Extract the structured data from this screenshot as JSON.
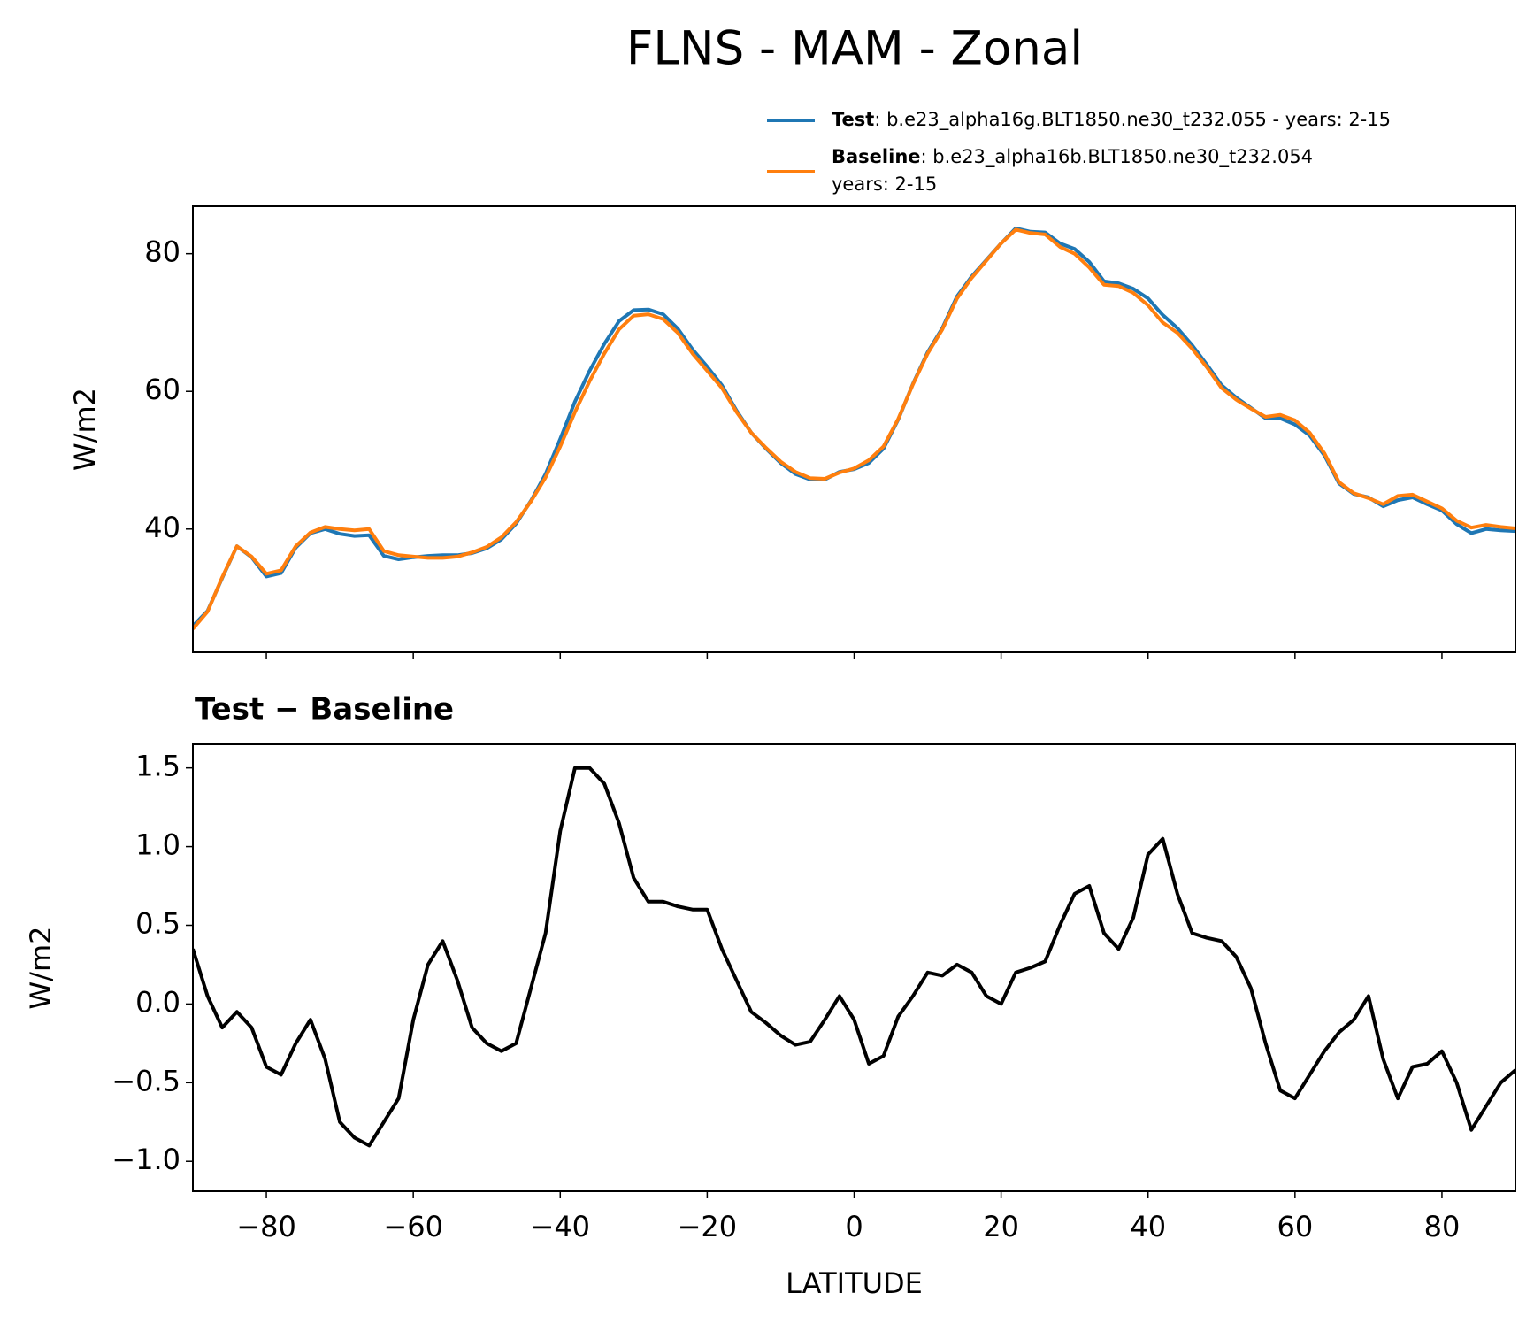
{
  "title": "FLNS - MAM - Zonal",
  "chart_data": [
    {
      "type": "line",
      "ylabel": "W/m2",
      "x": [
        -90,
        -88,
        -86,
        -84,
        -82,
        -80,
        -78,
        -76,
        -74,
        -72,
        -70,
        -68,
        -66,
        -64,
        -62,
        -60,
        -58,
        -56,
        -54,
        -52,
        -50,
        -48,
        -46,
        -44,
        -42,
        -40,
        -38,
        -36,
        -34,
        -32,
        -30,
        -28,
        -26,
        -24,
        -22,
        -20,
        -18,
        -16,
        -14,
        -12,
        -10,
        -8,
        -6,
        -4,
        -2,
        0,
        2,
        4,
        6,
        8,
        10,
        12,
        14,
        16,
        18,
        20,
        22,
        24,
        26,
        28,
        30,
        32,
        34,
        36,
        38,
        40,
        42,
        44,
        46,
        48,
        50,
        52,
        54,
        56,
        58,
        60,
        62,
        64,
        66,
        68,
        70,
        72,
        74,
        76,
        78,
        80,
        82,
        84,
        86,
        88,
        90
      ],
      "series": [
        {
          "name": "Test",
          "description": [
            ": b.e23_alpha16g.BLT1850.ne30_t232.055 - years: 2-15"
          ],
          "color": "#1f77b4",
          "values": [
            25.9,
            28.1,
            32.9,
            37.5,
            35.9,
            33.1,
            33.6,
            37.3,
            39.4,
            40.0,
            39.3,
            39.0,
            39.1,
            36.1,
            35.6,
            35.9,
            36.1,
            36.2,
            36.2,
            36.5,
            37.2,
            38.5,
            40.8,
            44.1,
            48.0,
            53.1,
            58.5,
            63.0,
            66.9,
            70.2,
            71.8,
            71.9,
            71.2,
            69.1,
            66.1,
            63.6,
            60.9,
            57.2,
            54.0,
            51.7,
            49.6,
            48.0,
            47.2,
            47.2,
            48.3,
            48.7,
            49.6,
            51.7,
            55.9,
            61.1,
            65.7,
            69.2,
            73.8,
            76.7,
            79.1,
            81.5,
            83.7,
            83.2,
            83.1,
            81.5,
            80.7,
            78.8,
            76.0,
            75.7,
            74.9,
            73.5,
            71.1,
            69.2,
            66.7,
            63.9,
            60.9,
            59.1,
            57.6,
            56.1,
            56.1,
            55.2,
            53.6,
            50.7,
            46.6,
            45.1,
            44.6,
            43.3,
            44.2,
            44.6,
            43.6,
            42.7,
            40.7,
            39.4,
            40.0,
            39.8,
            39.7
          ]
        },
        {
          "name": "Baseline",
          "description": [
            ": b.e23_alpha16b.BLT1850.ne30_t232.054",
            "years: 2-15"
          ],
          "color": "#ff7f0e",
          "values": [
            25.5,
            28,
            33,
            37.5,
            36,
            33.5,
            34,
            37.5,
            39.5,
            40.3,
            40,
            39.8,
            40,
            36.8,
            36.2,
            36,
            35.8,
            35.8,
            36,
            36.6,
            37.4,
            38.8,
            41,
            44,
            47.5,
            52,
            57,
            61.5,
            65.5,
            69,
            71,
            71.2,
            70.5,
            68.5,
            65.5,
            63,
            60.5,
            57,
            54,
            51.8,
            49.8,
            48.3,
            47.4,
            47.3,
            48.2,
            48.8,
            50,
            52,
            56,
            61,
            65.5,
            69,
            73.5,
            76.5,
            79,
            81.5,
            83.5,
            83,
            82.8,
            81,
            80,
            78,
            75.5,
            75.3,
            74.3,
            72.5,
            70,
            68.5,
            66.2,
            63.5,
            60.5,
            58.8,
            57.5,
            56.3,
            56.6,
            55.8,
            54,
            51,
            46.8,
            45.2,
            44.5,
            43.6,
            44.8,
            45,
            44,
            43,
            41.2,
            40.2,
            40.6,
            40.3,
            40.1
          ]
        }
      ],
      "xlim": [
        -90,
        90
      ],
      "ylim": [
        22.1,
        86.9
      ],
      "yticks": [
        40,
        60,
        80
      ]
    },
    {
      "type": "line",
      "title": "Test − Baseline",
      "ylabel": "W/m2",
      "xlabel": "LATITUDE",
      "x": [
        -90,
        -88,
        -86,
        -84,
        -82,
        -80,
        -78,
        -76,
        -74,
        -72,
        -70,
        -68,
        -66,
        -64,
        -62,
        -60,
        -58,
        -56,
        -54,
        -52,
        -50,
        -48,
        -46,
        -44,
        -42,
        -40,
        -38,
        -36,
        -34,
        -32,
        -30,
        -28,
        -26,
        -24,
        -22,
        -20,
        -18,
        -16,
        -14,
        -12,
        -10,
        -8,
        -6,
        -4,
        -2,
        0,
        2,
        4,
        6,
        8,
        10,
        12,
        14,
        16,
        18,
        20,
        22,
        24,
        26,
        28,
        30,
        32,
        34,
        36,
        38,
        40,
        42,
        44,
        46,
        48,
        50,
        52,
        54,
        56,
        58,
        60,
        62,
        64,
        66,
        68,
        70,
        72,
        74,
        76,
        78,
        80,
        82,
        84,
        86,
        88,
        90
      ],
      "series": [
        {
          "color": "#000000",
          "values": [
            0.35,
            0.05,
            -0.15,
            -0.05,
            -0.15,
            -0.4,
            -0.45,
            -0.25,
            -0.1,
            -0.35,
            -0.75,
            -0.85,
            -0.9,
            -0.75,
            -0.6,
            -0.1,
            0.25,
            0.4,
            0.15,
            -0.15,
            -0.25,
            -0.3,
            -0.25,
            0.1,
            0.45,
            1.1,
            1.5,
            1.5,
            1.4,
            1.15,
            0.8,
            0.65,
            0.65,
            0.62,
            0.6,
            0.6,
            0.35,
            0.15,
            -0.05,
            -0.12,
            -0.2,
            -0.26,
            -0.24,
            -0.1,
            0.05,
            -0.1,
            -0.38,
            -0.33,
            -0.08,
            0.05,
            0.2,
            0.18,
            0.25,
            0.2,
            0.05,
            0.0,
            0.2,
            0.23,
            0.27,
            0.5,
            0.7,
            0.75,
            0.45,
            0.35,
            0.55,
            0.95,
            1.05,
            0.7,
            0.45,
            0.42,
            0.4,
            0.3,
            0.1,
            -0.25,
            -0.55,
            -0.6,
            -0.45,
            -0.3,
            -0.18,
            -0.1,
            0.05,
            -0.35,
            -0.6,
            -0.4,
            -0.38,
            -0.3,
            -0.5,
            -0.8,
            -0.65,
            -0.5,
            -0.42
          ]
        }
      ],
      "xlim": [
        -90,
        90
      ],
      "ylim": [
        -1.19,
        1.65
      ],
      "xticks": [
        {
          "value": -80,
          "label": "−80"
        },
        {
          "value": -60,
          "label": "−60"
        },
        {
          "value": -40,
          "label": "−40"
        },
        {
          "value": -20,
          "label": "−20"
        },
        0,
        20,
        40,
        60,
        80
      ],
      "yticks": [
        {
          "value": -1.0,
          "label": "−1.0"
        },
        {
          "value": -0.5,
          "label": "−0.5"
        },
        {
          "value": 0.0,
          "label": "0.0"
        },
        0.5,
        {
          "value": 1.0,
          "label": "1.0"
        },
        1.5
      ]
    }
  ]
}
